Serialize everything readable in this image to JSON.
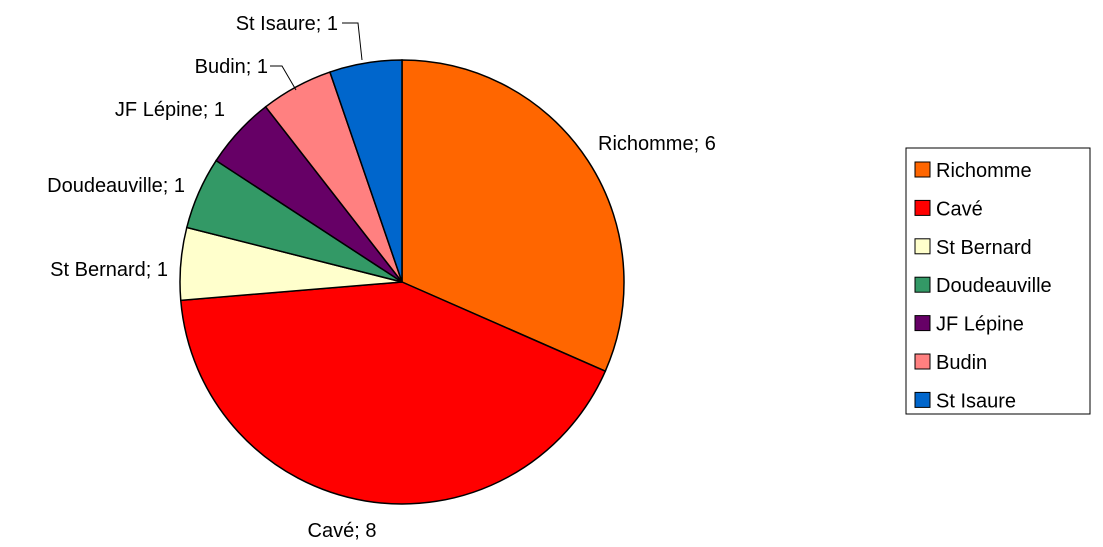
{
  "chart_data": {
    "type": "pie",
    "categories": [
      "Richomme",
      "Cavé",
      "St Bernard",
      "Doudeauville",
      "JF Lépine",
      "Budin",
      "St Isaure"
    ],
    "values": [
      6,
      8,
      1,
      1,
      1,
      1,
      1
    ],
    "data_labels": [
      "Richomme; 6",
      "Cavé; 8",
      "St Bernard; 1",
      "Doudeauville; 1",
      "JF Lépine; 1",
      "Budin; 1",
      "St Isaure; 1"
    ],
    "colors": [
      "#ff6600",
      "#ff0000",
      "#ffffcc",
      "#339966",
      "#660066",
      "#ff8080",
      "#0066cc"
    ],
    "legend": {
      "position": "right",
      "entries": [
        "Richomme",
        "Cavé",
        "St Bernard",
        "Doudeauville",
        "JF Lépine",
        "Budin",
        "St Isaure"
      ]
    },
    "start_angle": "top",
    "direction": "clockwise"
  }
}
